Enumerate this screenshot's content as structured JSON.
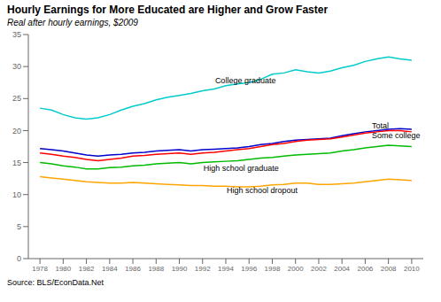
{
  "chart_data": {
    "type": "line",
    "title": "Hourly Earnings for More Educated are Higher and Grow Faster",
    "subtitle": "Real after hourly earnings, $2009",
    "source": "Source: BLS/EconData.Net",
    "x": [
      1978,
      1979,
      1980,
      1981,
      1982,
      1983,
      1984,
      1985,
      1986,
      1987,
      1988,
      1989,
      1990,
      1991,
      1992,
      1993,
      1994,
      1995,
      1996,
      1997,
      1998,
      1999,
      2000,
      2001,
      2002,
      2003,
      2004,
      2005,
      2006,
      2007,
      2008,
      2009,
      2010
    ],
    "xlim": [
      1977,
      2011
    ],
    "xticks": [
      1978,
      1980,
      1982,
      1984,
      1986,
      1988,
      1990,
      1992,
      1994,
      1996,
      1998,
      2000,
      2002,
      2004,
      2006,
      2008,
      2010
    ],
    "ylim": [
      0,
      35
    ],
    "yticks": [
      0,
      5,
      10,
      15,
      20,
      25,
      30,
      35
    ],
    "grid": false,
    "series": [
      {
        "name": "College graduate",
        "color": "#00CCCC",
        "values": [
          23.5,
          23.2,
          22.5,
          22.0,
          21.8,
          22.0,
          22.5,
          23.2,
          23.8,
          24.2,
          24.8,
          25.2,
          25.5,
          25.8,
          26.2,
          26.5,
          27.0,
          27.3,
          27.5,
          28.0,
          28.8,
          29.0,
          29.5,
          29.2,
          29.0,
          29.3,
          29.8,
          30.2,
          30.8,
          31.2,
          31.5,
          31.2,
          31.0
        ]
      },
      {
        "name": "Total",
        "color": "#0000CC",
        "values": [
          17.2,
          17.0,
          16.8,
          16.5,
          16.2,
          16.0,
          16.2,
          16.3,
          16.5,
          16.6,
          16.8,
          16.9,
          17.0,
          16.8,
          17.0,
          17.1,
          17.2,
          17.3,
          17.5,
          17.8,
          18.0,
          18.3,
          18.5,
          18.6,
          18.7,
          18.8,
          19.2,
          19.5,
          19.8,
          20.0,
          20.2,
          20.3,
          20.2
        ]
      },
      {
        "name": "Some college",
        "color": "#FF0000",
        "values": [
          16.5,
          16.3,
          16.0,
          15.8,
          15.5,
          15.3,
          15.5,
          15.7,
          16.0,
          16.1,
          16.3,
          16.4,
          16.5,
          16.3,
          16.5,
          16.6,
          16.8,
          17.0,
          17.2,
          17.5,
          17.8,
          18.0,
          18.3,
          18.5,
          18.6,
          18.7,
          19.0,
          19.3,
          19.6,
          19.8,
          20.0,
          20.0,
          19.8
        ]
      },
      {
        "name": "High school graduate",
        "color": "#00BB00",
        "values": [
          15.0,
          14.8,
          14.5,
          14.3,
          14.0,
          14.0,
          14.2,
          14.3,
          14.5,
          14.6,
          14.8,
          14.9,
          15.0,
          14.8,
          15.0,
          15.1,
          15.2,
          15.3,
          15.5,
          15.7,
          15.8,
          16.0,
          16.2,
          16.3,
          16.4,
          16.5,
          16.8,
          17.0,
          17.3,
          17.5,
          17.7,
          17.6,
          17.5
        ]
      },
      {
        "name": "High school dropout",
        "color": "#FFA500",
        "values": [
          12.8,
          12.6,
          12.4,
          12.2,
          12.0,
          11.9,
          11.8,
          11.8,
          11.9,
          11.8,
          11.7,
          11.6,
          11.5,
          11.4,
          11.4,
          11.3,
          11.3,
          11.2,
          11.2,
          11.3,
          11.5,
          11.6,
          11.8,
          11.8,
          11.6,
          11.6,
          11.7,
          11.8,
          12.0,
          12.2,
          12.4,
          12.3,
          12.2
        ]
      }
    ],
    "annotations": [
      {
        "text": "College graduate",
        "x": 1993,
        "y": 27.8
      },
      {
        "text": "Total",
        "x": 2006.5,
        "y": 20.8
      },
      {
        "text": "Some college",
        "x": 2006.5,
        "y": 19.2
      },
      {
        "text": "High school graduate",
        "x": 1992,
        "y": 14.2
      },
      {
        "text": "High school dropout",
        "x": 1994,
        "y": 10.7
      }
    ]
  }
}
